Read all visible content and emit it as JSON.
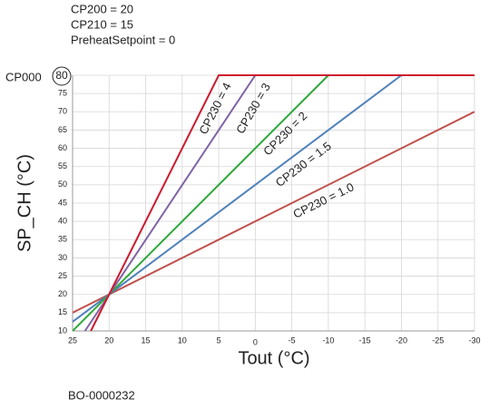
{
  "chart_data": {
    "type": "line",
    "annotations": [
      "CP200 = 20",
      "CP210 = 15",
      "PreheatSetpoint = 0"
    ],
    "y_marker_label": "CP000",
    "footer": "BO-0000232",
    "xlabel": "Tout (°C)",
    "ylabel": "SP_CH (°C)",
    "xlim": [
      25,
      -30
    ],
    "ylim": [
      10,
      80
    ],
    "xticks": [
      25,
      20,
      15,
      10,
      5,
      0,
      -5,
      -10,
      -15,
      -20,
      -25,
      -30
    ],
    "yticks": [
      10,
      15,
      20,
      25,
      30,
      35,
      40,
      45,
      50,
      55,
      60,
      65,
      70,
      75,
      80
    ],
    "grid": true,
    "series": [
      {
        "name": "CP230 = 1.0",
        "color": "#c0504d",
        "x": [
          25,
          -30
        ],
        "values": [
          15,
          70
        ]
      },
      {
        "name": "CP230 = 1.5",
        "color": "#4f81bd",
        "x": [
          25,
          -20,
          -30
        ],
        "values": [
          12.5,
          80,
          80
        ]
      },
      {
        "name": "CP230 = 2",
        "color": "#2ea83a",
        "x": [
          25,
          -10,
          -30
        ],
        "values": [
          10,
          80,
          80
        ]
      },
      {
        "name": "CP230 = 3",
        "color": "#8064a2",
        "x": [
          23.3,
          0,
          -30
        ],
        "values": [
          10,
          80,
          80
        ]
      },
      {
        "name": "CP230 = 4",
        "color": "#cc1a2e",
        "x": [
          22.5,
          5,
          -30
        ],
        "values": [
          10,
          80,
          80
        ]
      }
    ]
  }
}
